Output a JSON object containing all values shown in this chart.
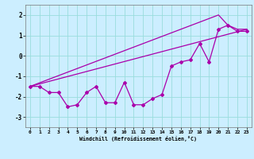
{
  "background_color": "#cceeff",
  "grid_color": "#99dddd",
  "line_color": "#aa00aa",
  "xlim": [
    -0.5,
    23.5
  ],
  "ylim": [
    -3.5,
    2.5
  ],
  "xticks": [
    0,
    1,
    2,
    3,
    4,
    5,
    6,
    7,
    8,
    9,
    10,
    11,
    12,
    13,
    14,
    15,
    16,
    17,
    18,
    19,
    20,
    21,
    22,
    23
  ],
  "yticks": [
    -3,
    -2,
    -1,
    0,
    1,
    2
  ],
  "xlabel": "Windchill (Refroidissement éolien,°C)",
  "line1_x": [
    0,
    1,
    2,
    3,
    4,
    5,
    6,
    7,
    8,
    9,
    10,
    11,
    12,
    13,
    14,
    15,
    16,
    17,
    18,
    19,
    20,
    21,
    22,
    23
  ],
  "line1_y": [
    -1.5,
    -1.5,
    -1.8,
    -1.8,
    -2.5,
    -2.4,
    -1.8,
    -1.5,
    -2.3,
    -2.3,
    -1.3,
    -2.4,
    -2.4,
    -2.1,
    -1.9,
    -0.5,
    -0.3,
    -0.2,
    0.6,
    -0.3,
    1.3,
    1.5,
    1.2,
    1.2
  ],
  "line2_x": [
    0,
    23
  ],
  "line2_y": [
    -1.5,
    1.3
  ],
  "line3_x": [
    0,
    20,
    21,
    22,
    23
  ],
  "line3_y": [
    -1.5,
    2.0,
    1.5,
    1.3,
    1.3
  ]
}
